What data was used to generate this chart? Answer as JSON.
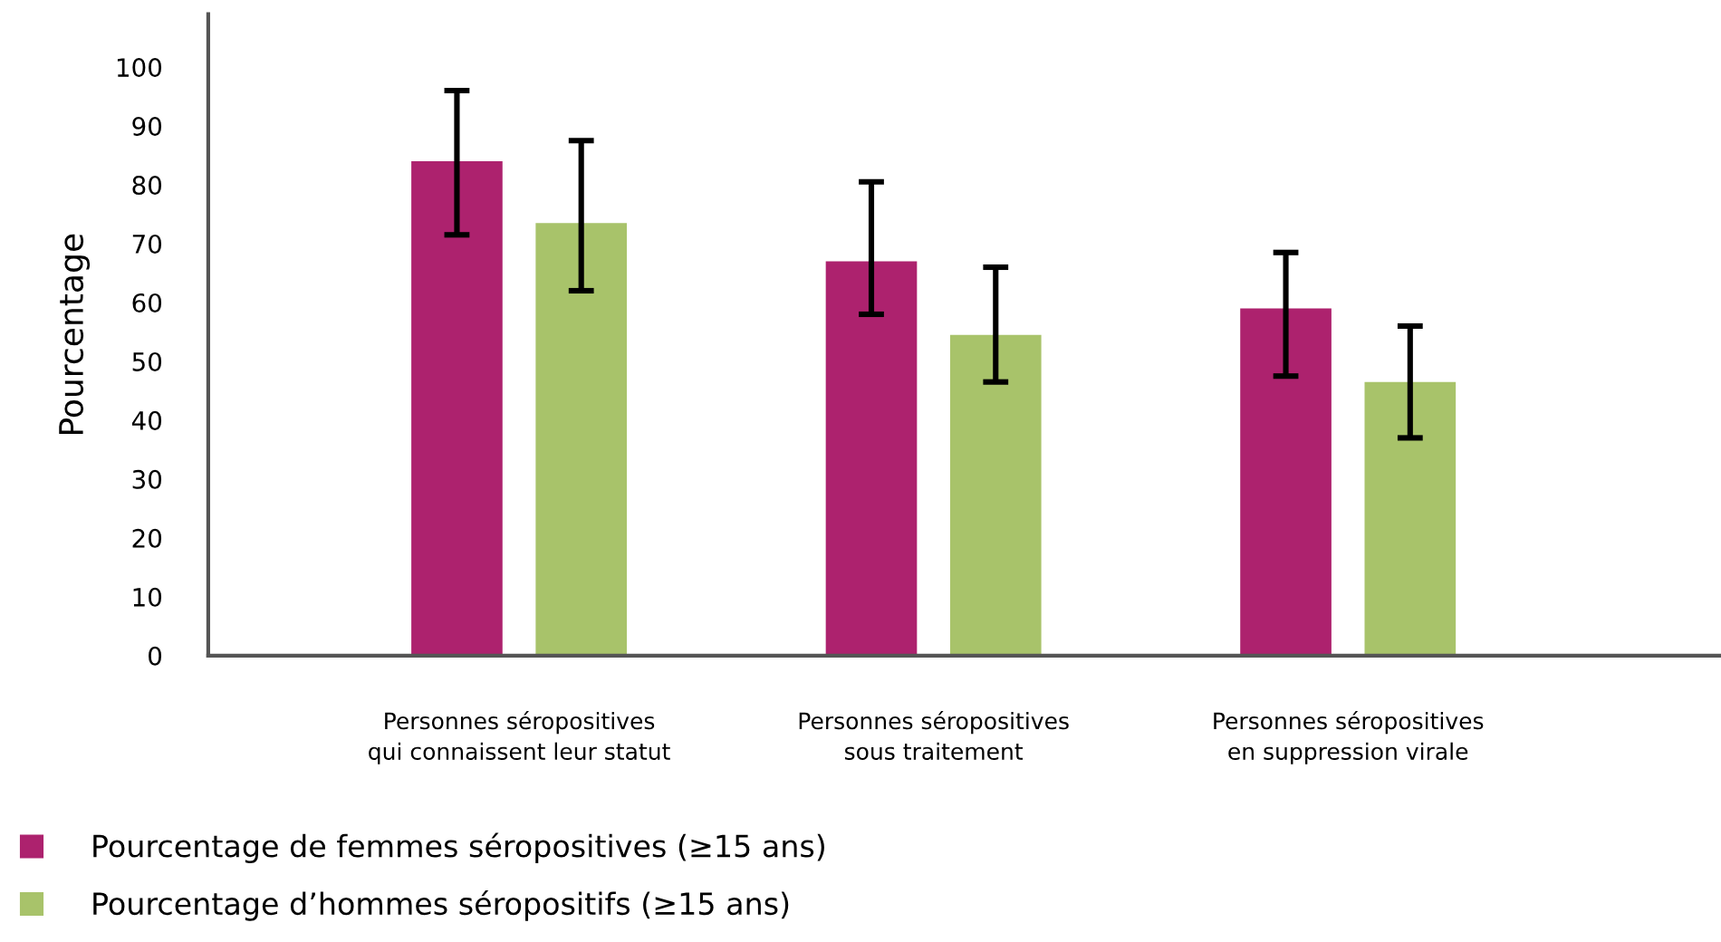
{
  "chart_data": {
    "type": "bar",
    "ylabel": "Pourcentage",
    "categories": [
      "Personnes séropositives\nqui connaissent leur statut",
      "Personnes séropositives\nsous traitement",
      "Personnes séropositives\nen suppression virale"
    ],
    "series": [
      {
        "name": "Pourcentage de femmes séropositives (≥15 ans)",
        "color": "#ad226e",
        "values": [
          84,
          67,
          59
        ],
        "errors": [
          [
            71.5,
            96
          ],
          [
            58,
            80.5
          ],
          [
            47.5,
            68.5
          ]
        ]
      },
      {
        "name": "Pourcentage d’hommes séropositifs (≥15 ans)",
        "color": "#a8c36a",
        "values": [
          73.5,
          54.5,
          46.5
        ],
        "errors": [
          [
            62,
            87.5
          ],
          [
            46.5,
            66
          ],
          [
            37,
            56
          ]
        ]
      }
    ],
    "ylim": [
      0,
      109
    ],
    "yticks": [
      0,
      10,
      20,
      30,
      40,
      50,
      60,
      70,
      80,
      90,
      100
    ],
    "grid": false,
    "legend": "bottom left"
  }
}
